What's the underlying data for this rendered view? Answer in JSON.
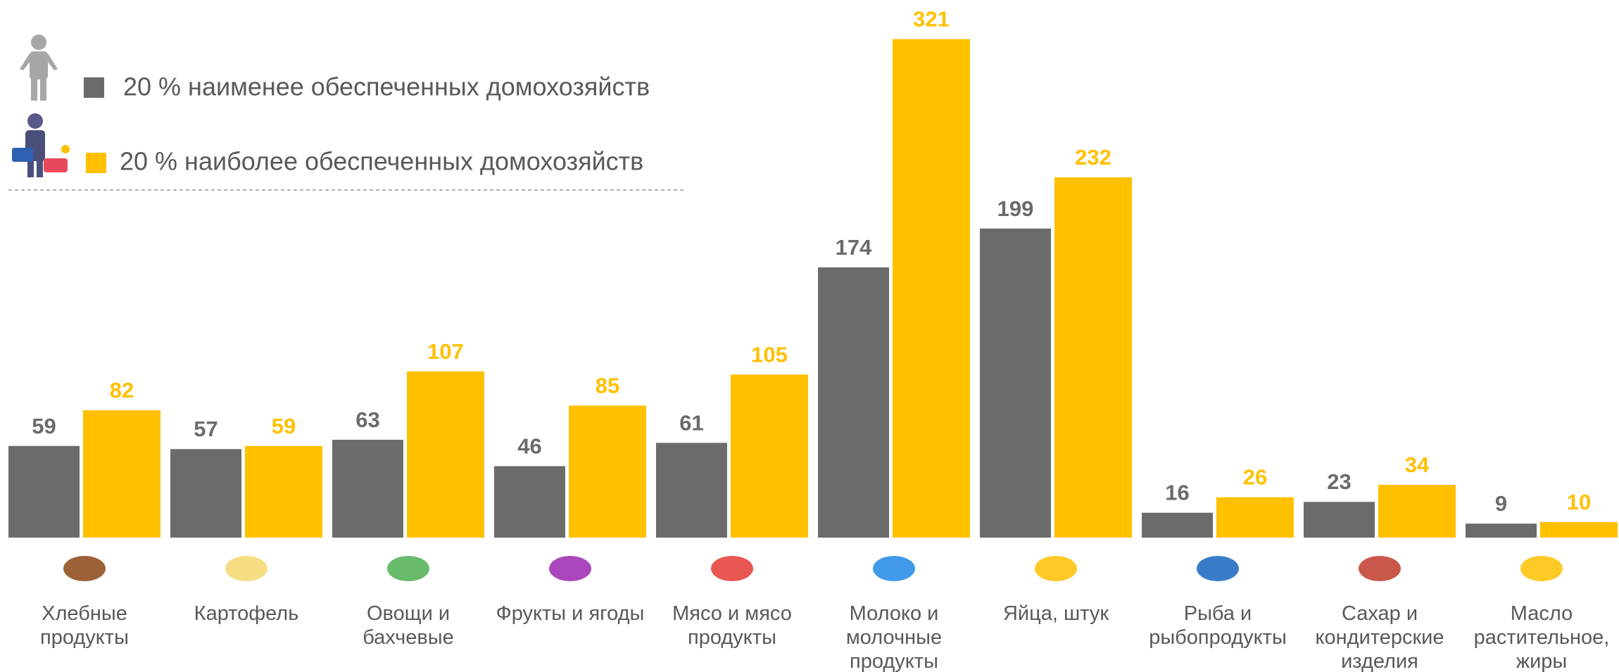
{
  "chart_data": {
    "type": "bar",
    "categories": [
      "Хлебные продукты",
      "Картофель",
      "Овощи и бахчевые",
      "Фрукты и ягоды",
      "Мясо и мясо продукты",
      "Молоко и молочные продукты",
      "Яйца, штук",
      "Рыба и рыбопродукты",
      "Сахар и кондитерские изделия",
      "Масло растительное, жиры"
    ],
    "series": [
      {
        "name": "20 % наименее обеспеченных домохозяйств",
        "color": "#6b6b6b",
        "values": [
          59,
          57,
          63,
          46,
          61,
          174,
          199,
          16,
          23,
          9
        ]
      },
      {
        "name": "20 % наиболее обеспеченных домохозяйств",
        "color": "#ffc000",
        "values": [
          82,
          59,
          107,
          85,
          105,
          321,
          232,
          26,
          34,
          10
        ]
      }
    ]
  }
}
